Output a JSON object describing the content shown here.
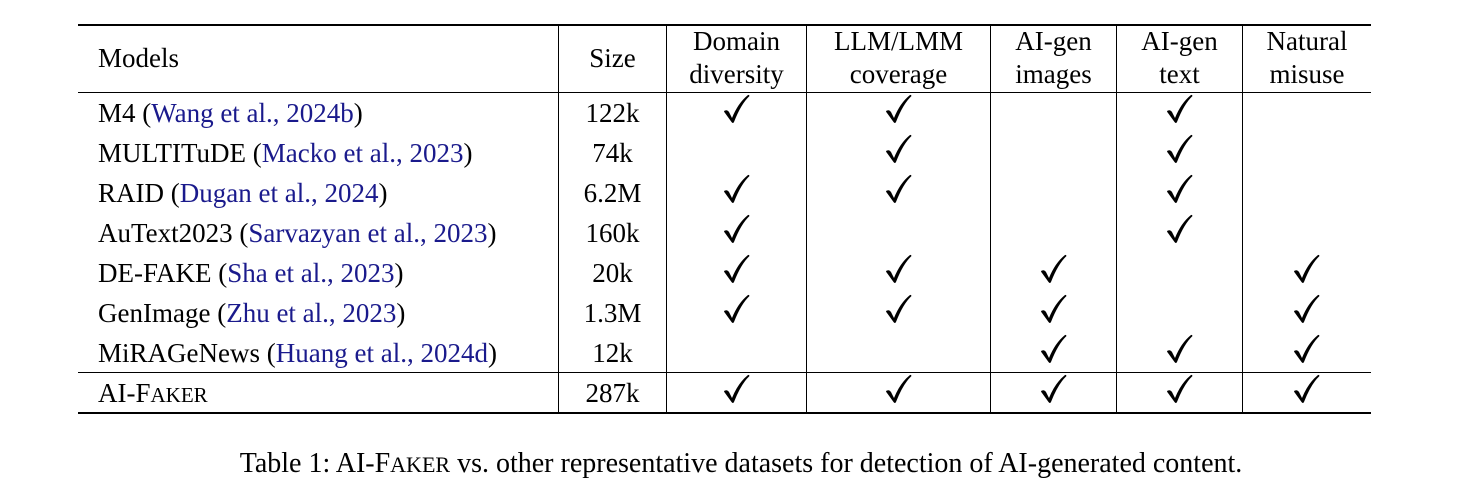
{
  "table": {
    "headers": {
      "models": "Models",
      "size": "Size",
      "domain": [
        "Domain",
        "diversity"
      ],
      "llm": [
        "LLM/LMM",
        "coverage"
      ],
      "img": [
        "AI-gen",
        "images"
      ],
      "text": [
        "AI-gen",
        "text"
      ],
      "nat": [
        "Natural",
        "misuse"
      ]
    },
    "rows": [
      {
        "model": "M4",
        "cite": "Wang et al., 2024b",
        "size": "122k",
        "checks": [
          true,
          true,
          false,
          true,
          false
        ]
      },
      {
        "model": "MULTITuDE",
        "cite": "Macko et al., 2023",
        "size": "74k",
        "checks": [
          false,
          true,
          false,
          true,
          false
        ]
      },
      {
        "model": "RAID",
        "cite": "Dugan et al., 2024",
        "size": "6.2M",
        "checks": [
          true,
          true,
          false,
          true,
          false
        ]
      },
      {
        "model": "AuText2023",
        "cite": "Sarvazyan et al., 2023",
        "size": "160k",
        "checks": [
          true,
          false,
          false,
          true,
          false
        ]
      },
      {
        "model": "DE-FAKE",
        "cite": "Sha et al., 2023",
        "size": "20k",
        "checks": [
          true,
          true,
          true,
          false,
          true
        ]
      },
      {
        "model": "GenImage",
        "cite": "Zhu et al., 2023",
        "size": "1.3M",
        "checks": [
          true,
          true,
          true,
          false,
          true
        ]
      },
      {
        "model": "MiRAGeNews",
        "cite": "Huang et al., 2024d",
        "size": "12k",
        "checks": [
          false,
          false,
          true,
          true,
          true
        ]
      }
    ],
    "final_row": {
      "model_prefix": "AI-F",
      "model_small": "AKER",
      "size": "287k",
      "checks": [
        true,
        true,
        true,
        true,
        true
      ]
    }
  },
  "caption": {
    "label": "Table 1:",
    "name_prefix": "AI-F",
    "name_small": "AKER",
    "rest": "vs. other representative datasets for detection of AI-generated content."
  },
  "icons": {
    "check": "checkmark-icon"
  },
  "colors": {
    "citation": "#1a1a8c",
    "text": "#000000"
  }
}
